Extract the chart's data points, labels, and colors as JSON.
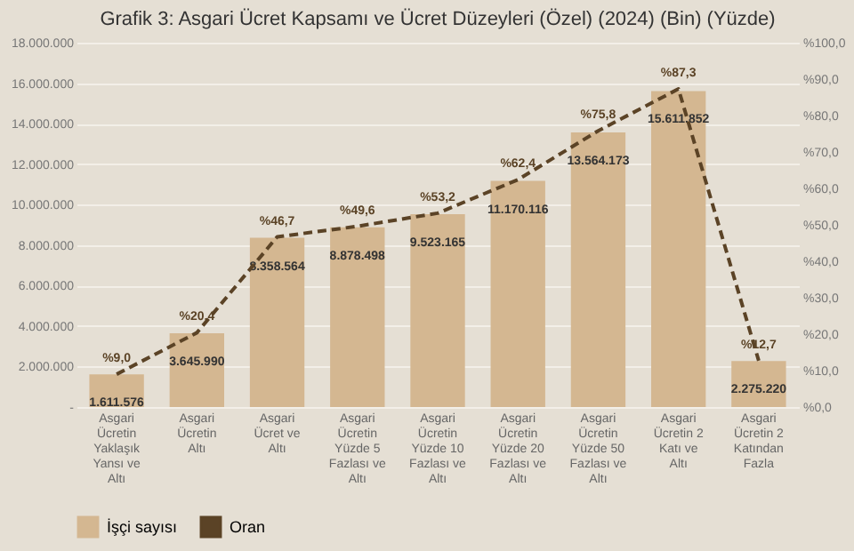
{
  "chart_data": {
    "type": "bar",
    "title": "Grafik 3: Asgari Ücret Kapsamı ve Ücret Düzeyleri (Özel) (2024) (Bin) (Yüzde)",
    "categories": [
      "Asgari Ücretin Yaklaşık Yansı ve Altı",
      "Asgari Ücretin Altı",
      "Asgari Ücret ve Altı",
      "Asgari Ücretin Yüzde 5 Fazlası ve Altı",
      "Asgari Ücretin Yüzde 10 Fazlası ve Altı",
      "Asgari Ücretin Yüzde 20 Fazlası ve Altı",
      "Asgari Ücretin Yüzde 50 Fazlası ve Altı",
      "Asgari Ücretin 2 Katı ve Altı",
      "Asgari Ücretin 2 Katından Fazla"
    ],
    "series": [
      {
        "name": "İşçi sayısı",
        "color": "#d4b791",
        "values": [
          1611576,
          3645990,
          8358564,
          8878498,
          9523165,
          11170116,
          13564173,
          15611852,
          2275220
        ],
        "value_labels": [
          "1.611.576",
          "3.645.990",
          "8.358.564",
          "8.878.498",
          "9.523.165",
          "11.170.116",
          "13.564.173",
          "15.611.852",
          "2.275.220"
        ]
      },
      {
        "name": "Oran",
        "type": "line",
        "axis": "y2",
        "color": "#5b4326",
        "line_style": "dashed",
        "values": [
          9.0,
          20.4,
          46.7,
          49.6,
          53.2,
          62.4,
          75.8,
          87.3,
          12.7
        ],
        "value_labels": [
          "%9,0",
          "%20,4",
          "%46,7",
          "%49,6",
          "%53,2",
          "%62,4",
          "%75,8",
          "%87,3",
          "%12,7"
        ]
      }
    ],
    "ylim": [
      0,
      18000000
    ],
    "yticks": [
      {
        "value": 0,
        "label": "-"
      },
      {
        "value": 2000000,
        "label": "2.000.000"
      },
      {
        "value": 4000000,
        "label": "4.000.000"
      },
      {
        "value": 6000000,
        "label": "6.000.000"
      },
      {
        "value": 8000000,
        "label": "8.000.000"
      },
      {
        "value": 10000000,
        "label": "10.000.000"
      },
      {
        "value": 12000000,
        "label": "12.000.000"
      },
      {
        "value": 14000000,
        "label": "14.000.000"
      },
      {
        "value": 16000000,
        "label": "16.000.000"
      },
      {
        "value": 18000000,
        "label": "18.000.000"
      }
    ],
    "y2lim": [
      0,
      100
    ],
    "y2ticks": [
      {
        "value": 0,
        "label": "%0,0"
      },
      {
        "value": 10,
        "label": "%10,0"
      },
      {
        "value": 20,
        "label": "%20,0"
      },
      {
        "value": 30,
        "label": "%30,0"
      },
      {
        "value": 40,
        "label": "%40,0"
      },
      {
        "value": 50,
        "label": "%50,0"
      },
      {
        "value": 60,
        "label": "%60,0"
      },
      {
        "value": 70,
        "label": "%70,0"
      },
      {
        "value": 80,
        "label": "%80,0"
      },
      {
        "value": 90,
        "label": "%90,0"
      },
      {
        "value": 100,
        "label": "%100,0"
      }
    ],
    "grid": "y",
    "legend": "bottom",
    "marker": "none"
  }
}
